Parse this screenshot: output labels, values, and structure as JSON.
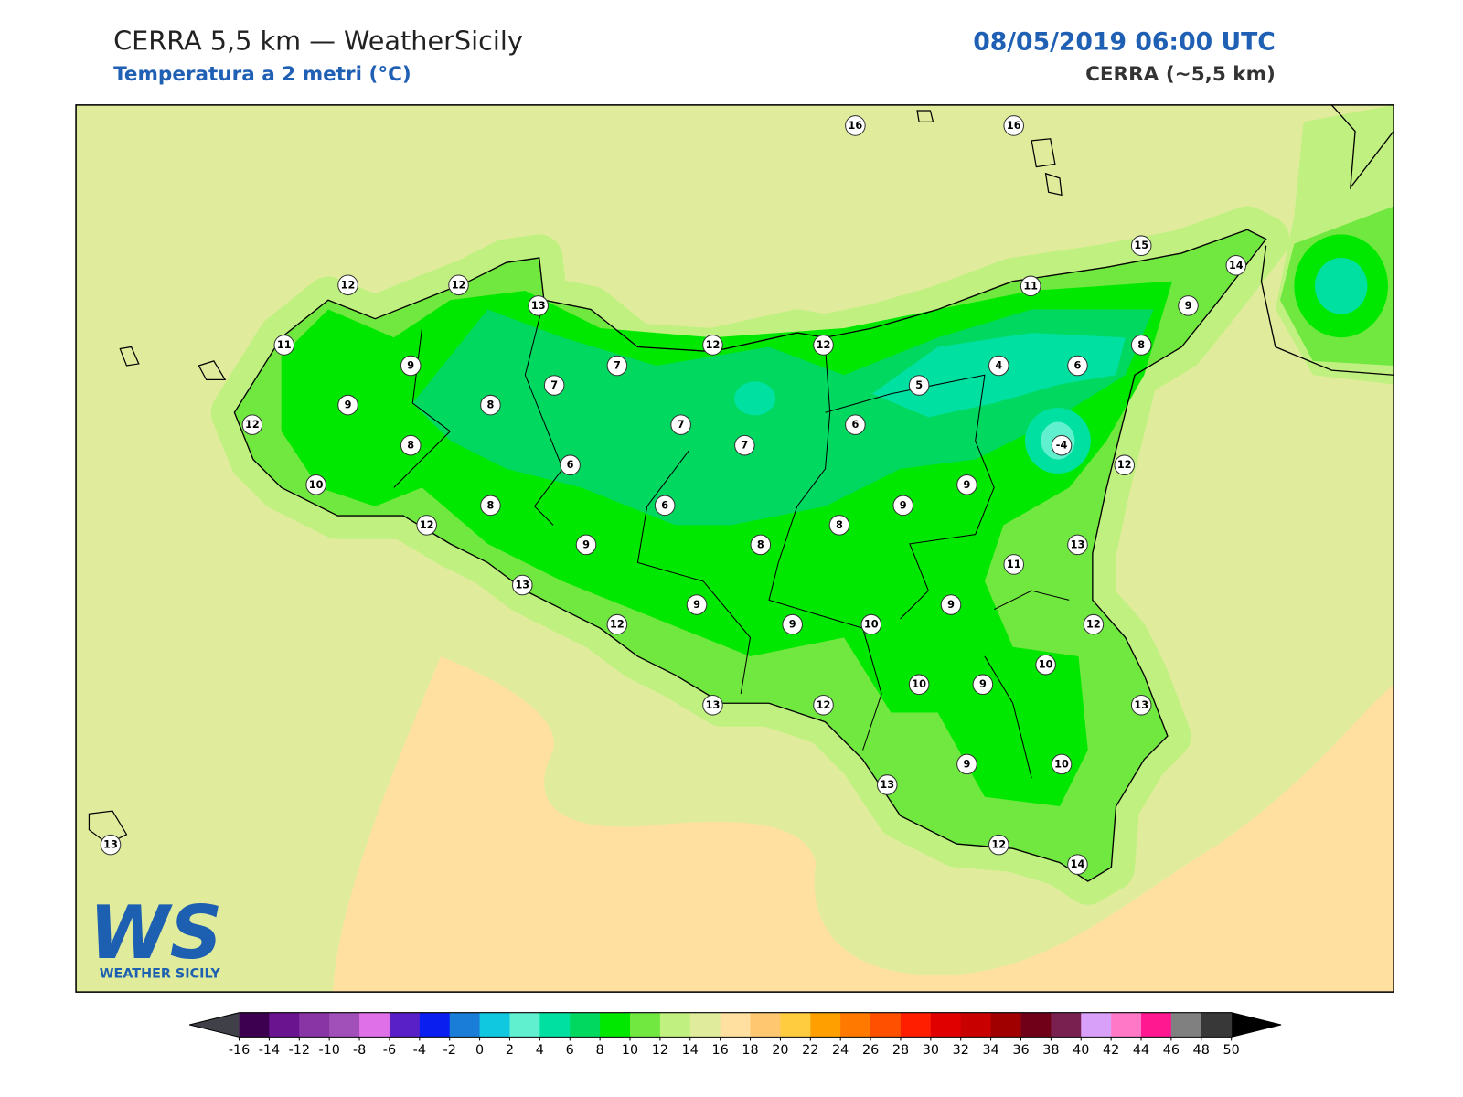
{
  "header": {
    "title": "CERRA 5,5 km — WeatherSicily",
    "subtitle": "Temperatura a 2 metri (°C)",
    "datetime": "08/05/2019 06:00 UTC",
    "model": "CERRA (~5,5 km)"
  },
  "map": {
    "station_values": [
      16,
      16,
      15,
      14,
      12,
      12,
      13,
      11,
      9,
      11,
      12,
      12,
      8,
      9,
      7,
      4,
      6,
      7,
      5,
      9,
      8,
      12,
      7,
      6,
      -4,
      8,
      7,
      6,
      12,
      10,
      9,
      8,
      6,
      9,
      12,
      8,
      9,
      8,
      13,
      11,
      13,
      9,
      9,
      12,
      9,
      10,
      12,
      10,
      10,
      9,
      13,
      12,
      13,
      9,
      10,
      13,
      13,
      12,
      14
    ]
  },
  "colorbar": {
    "ticks": [
      -16,
      -14,
      -12,
      -10,
      -8,
      -6,
      -4,
      -2,
      0,
      2,
      4,
      6,
      8,
      10,
      12,
      14,
      16,
      18,
      20,
      22,
      24,
      26,
      28,
      30,
      32,
      34,
      36,
      38,
      40,
      42,
      44,
      46,
      48,
      50
    ],
    "colors": [
      "#3d0050",
      "#6a1490",
      "#8a35a5",
      "#a050b8",
      "#e070e8",
      "#5a20c8",
      "#0a1ef0",
      "#1a7ed8",
      "#10c8e0",
      "#60f0d0",
      "#00e0a0",
      "#00d860",
      "#00e800",
      "#70e840",
      "#c0f080",
      "#e0ec9c",
      "#ffe0a0",
      "#ffc870",
      "#ffcc40",
      "#ffa000",
      "#ff7800",
      "#ff5000",
      "#ff1e00",
      "#e00000",
      "#c80000",
      "#a00000",
      "#700018",
      "#7a2050",
      "#d8a0f8",
      "#ff78c8",
      "#ff1890",
      "#808080",
      "#383838"
    ],
    "under_color": "#404048",
    "over_color": "#000000"
  },
  "logo": {
    "mark": "WS",
    "name": "WEATHER SICILY"
  }
}
